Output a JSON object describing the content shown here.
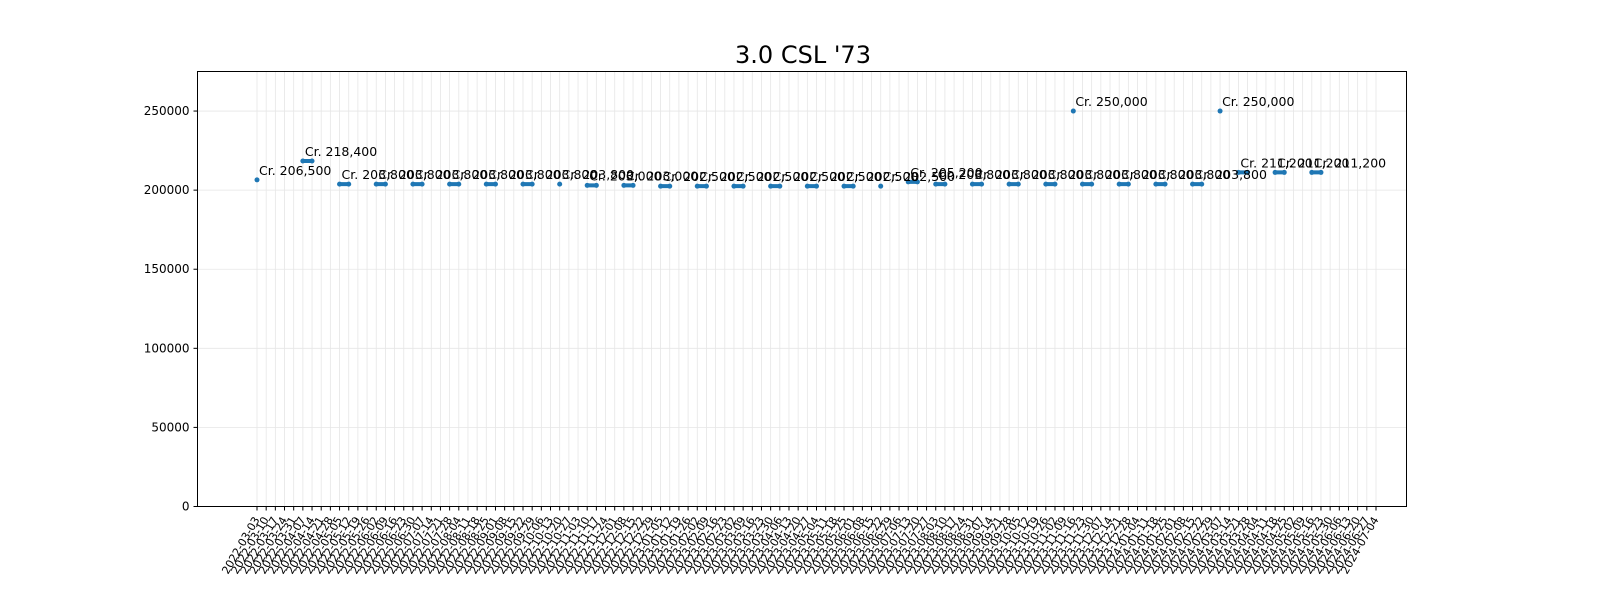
{
  "chart_data": {
    "type": "line",
    "title": "3.0 CSL '73",
    "xlabel": "",
    "ylabel": "",
    "ylim": [
      0,
      275000
    ],
    "yticks": [
      0,
      50000,
      100000,
      150000,
      200000,
      250000
    ],
    "ytick_labels": [
      "0",
      "50000",
      "100000",
      "150000",
      "200000",
      "250000"
    ],
    "grid": true,
    "legend": "none",
    "colors": {
      "series": "#1f77b4",
      "grid": "#e6e6e6",
      "frame": "#000000"
    },
    "dates": [
      "2022-03-03",
      "2022-03-10",
      "2022-03-17",
      "2022-03-24",
      "2022-03-31",
      "2022-04-07",
      "2022-04-14",
      "2022-04-21",
      "2022-04-28",
      "2022-05-05",
      "2022-05-12",
      "2022-05-19",
      "2022-05-26",
      "2022-06-02",
      "2022-06-09",
      "2022-06-16",
      "2022-06-23",
      "2022-06-30",
      "2022-07-07",
      "2022-07-14",
      "2022-07-21",
      "2022-07-28",
      "2022-08-04",
      "2022-08-11",
      "2022-08-18",
      "2022-08-25",
      "2022-09-01",
      "2022-09-08",
      "2022-09-15",
      "2022-09-22",
      "2022-09-29",
      "2022-10-06",
      "2022-10-13",
      "2022-10-20",
      "2022-10-27",
      "2022-11-03",
      "2022-11-10",
      "2022-11-17",
      "2022-11-24",
      "2022-12-01",
      "2022-12-08",
      "2022-12-15",
      "2022-12-22",
      "2022-12-29",
      "2023-01-05",
      "2023-01-12",
      "2023-01-19",
      "2023-01-26",
      "2023-02-02",
      "2023-02-09",
      "2023-02-16",
      "2023-02-23",
      "2023-03-02",
      "2023-03-09",
      "2023-03-16",
      "2023-03-23",
      "2023-03-30",
      "2023-04-06",
      "2023-04-13",
      "2023-04-20",
      "2023-04-27",
      "2023-05-04",
      "2023-05-11",
      "2023-05-18",
      "2023-05-25",
      "2023-06-01",
      "2023-06-08",
      "2023-06-15",
      "2023-06-22",
      "2023-06-29",
      "2023-07-06",
      "2023-07-13",
      "2023-07-20",
      "2023-07-27",
      "2023-08-03",
      "2023-08-10",
      "2023-08-17",
      "2023-08-24",
      "2023-08-31",
      "2023-09-07",
      "2023-09-14",
      "2023-09-21",
      "2023-09-28",
      "2023-10-05",
      "2023-10-12",
      "2023-10-19",
      "2023-10-26",
      "2023-11-02",
      "2023-11-09",
      "2023-11-16",
      "2023-11-23",
      "2023-11-30",
      "2023-12-07",
      "2023-12-14",
      "2023-12-21",
      "2023-12-28",
      "2024-01-04",
      "2024-01-11",
      "2024-01-18",
      "2024-01-25",
      "2024-02-01",
      "2024-02-08",
      "2024-02-15",
      "2024-02-22",
      "2024-02-29",
      "2024-03-07",
      "2024-03-14",
      "2024-03-21",
      "2024-03-28",
      "2024-04-04",
      "2024-04-11",
      "2024-04-18",
      "2024-04-25",
      "2024-05-02",
      "2024-05-09",
      "2024-05-16",
      "2024-05-23",
      "2024-05-30",
      "2024-06-06",
      "2024-06-13",
      "2024-06-20",
      "2024-06-27",
      "2024-07-04"
    ],
    "series": [
      {
        "segments": [
          {
            "start": "2022-03-03",
            "end": "2022-03-03",
            "value": 206500,
            "label": "Cr. 206,500"
          },
          {
            "start": "2022-04-07",
            "end": "2022-04-14",
            "value": 218400,
            "label": "Cr. 218,400"
          },
          {
            "start": "2022-05-05",
            "end": "2022-05-12",
            "value": 203800,
            "label": "Cr. 203,800"
          },
          {
            "start": "2022-06-02",
            "end": "2022-06-09",
            "value": 203800,
            "label": "Cr. 203,800"
          },
          {
            "start": "2022-06-30",
            "end": "2022-07-07",
            "value": 203800,
            "label": "Cr. 203,800"
          },
          {
            "start": "2022-07-28",
            "end": "2022-08-04",
            "value": 203800,
            "label": "Cr. 203,800"
          },
          {
            "start": "2022-08-25",
            "end": "2022-09-01",
            "value": 203800,
            "label": "Cr. 203,800"
          },
          {
            "start": "2022-09-22",
            "end": "2022-09-29",
            "value": 203800,
            "label": "Cr. 203,800"
          },
          {
            "start": "2022-10-20",
            "end": "2022-10-20",
            "value": 203800,
            "label": "Cr. 203,800"
          },
          {
            "start": "2022-11-10",
            "end": "2022-11-17",
            "value": 203000,
            "label": "Cr. 203,000"
          },
          {
            "start": "2022-12-08",
            "end": "2022-12-15",
            "value": 203000,
            "label": "Cr. 203,000"
          },
          {
            "start": "2023-01-05",
            "end": "2023-01-12",
            "value": 202500,
            "label": "Cr. 202,500"
          },
          {
            "start": "2023-02-02",
            "end": "2023-02-09",
            "value": 202500,
            "label": "Cr. 202,500"
          },
          {
            "start": "2023-03-02",
            "end": "2023-03-09",
            "value": 202500,
            "label": "Cr. 202,500"
          },
          {
            "start": "2023-03-30",
            "end": "2023-04-06",
            "value": 202500,
            "label": "Cr. 202,500"
          },
          {
            "start": "2023-04-27",
            "end": "2023-05-04",
            "value": 202500,
            "label": "Cr. 202,500"
          },
          {
            "start": "2023-05-25",
            "end": "2023-06-01",
            "value": 202500,
            "label": "Cr. 202,500"
          },
          {
            "start": "2023-06-22",
            "end": "2023-06-22",
            "value": 202500,
            "label": "Cr. 202,500"
          },
          {
            "start": "2023-07-13",
            "end": "2023-07-20",
            "value": 205200,
            "label": "Cr. 205,200"
          },
          {
            "start": "2023-08-03",
            "end": "2023-08-10",
            "value": 203800,
            "label": "Cr. 203,800"
          },
          {
            "start": "2023-08-31",
            "end": "2023-09-07",
            "value": 203800,
            "label": "Cr. 203,800"
          },
          {
            "start": "2023-09-28",
            "end": "2023-10-05",
            "value": 203800,
            "label": "Cr. 203,800"
          },
          {
            "start": "2023-10-26",
            "end": "2023-11-02",
            "value": 203800,
            "label": "Cr. 203,800"
          },
          {
            "start": "2023-11-16",
            "end": "2023-11-16",
            "value": 250000,
            "label": "Cr. 250,000"
          },
          {
            "start": "2023-11-23",
            "end": "2023-11-30",
            "value": 203800,
            "label": "Cr. 203,800"
          },
          {
            "start": "2023-12-21",
            "end": "2023-12-28",
            "value": 203800,
            "label": "Cr. 203,800"
          },
          {
            "start": "2024-01-18",
            "end": "2024-01-25",
            "value": 203800,
            "label": "Cr. 203,800"
          },
          {
            "start": "2024-02-15",
            "end": "2024-02-22",
            "value": 203800,
            "label": "Cr. 203,800"
          },
          {
            "start": "2024-03-07",
            "end": "2024-03-07",
            "value": 250000,
            "label": "Cr. 250,000"
          },
          {
            "start": "2024-03-21",
            "end": "2024-03-28",
            "value": 211200,
            "label": "Cr. 211,200"
          },
          {
            "start": "2024-04-18",
            "end": "2024-04-25",
            "value": 211200,
            "label": "Cr. 211,200"
          },
          {
            "start": "2024-05-16",
            "end": "2024-05-23",
            "value": 211200,
            "label": "Cr. 211,200"
          }
        ]
      }
    ]
  }
}
